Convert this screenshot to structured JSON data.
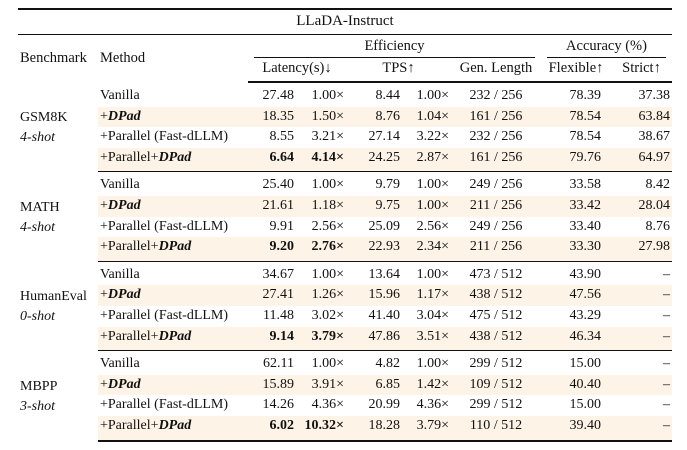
{
  "title": "LLaDA-Instruct",
  "colors": {
    "highlight": "#fdf3e6",
    "rule": "#111111"
  },
  "header": {
    "benchmark": "Benchmark",
    "method": "Method",
    "efficiency": "Efficiency",
    "accuracy": "Accuracy (%)",
    "latency": "Latency(s)↓",
    "tps": "TPS↑",
    "gen_length": "Gen. Length",
    "flexible": "Flexible↑",
    "strict": "Strict↑"
  },
  "groups": [
    {
      "benchmark": "GSM8K",
      "shots": "4-shot",
      "rows": [
        {
          "method_prefix": "Vanilla",
          "method_emph": "",
          "latency": "27.48",
          "latency_speedup": "1.00×",
          "tps": "8.44",
          "tps_speedup": "1.00×",
          "gen_length": "232 / 256",
          "flexible": "78.39",
          "strict": "37.38",
          "highlight": false,
          "bold": false
        },
        {
          "method_prefix": "+",
          "method_emph": "DPad",
          "latency": "18.35",
          "latency_speedup": "1.50×",
          "tps": "8.76",
          "tps_speedup": "1.04×",
          "gen_length": "161 / 256",
          "flexible": "78.54",
          "strict": "63.84",
          "highlight": true,
          "bold": false
        },
        {
          "method_prefix": "+Parallel (Fast-dLLM)",
          "method_emph": "",
          "latency": "8.55",
          "latency_speedup": "3.21×",
          "tps": "27.14",
          "tps_speedup": "3.22×",
          "gen_length": "232 / 256",
          "flexible": "78.54",
          "strict": "38.67",
          "highlight": false,
          "bold": false
        },
        {
          "method_prefix": "+Parallel+",
          "method_emph": "DPad",
          "latency": "6.64",
          "latency_speedup": "4.14×",
          "tps": "24.25",
          "tps_speedup": "2.87×",
          "gen_length": "161 / 256",
          "flexible": "79.76",
          "strict": "64.97",
          "highlight": true,
          "bold": true
        }
      ]
    },
    {
      "benchmark": "MATH",
      "shots": "4-shot",
      "rows": [
        {
          "method_prefix": "Vanilla",
          "method_emph": "",
          "latency": "25.40",
          "latency_speedup": "1.00×",
          "tps": "9.79",
          "tps_speedup": "1.00×",
          "gen_length": "249 / 256",
          "flexible": "33.58",
          "strict": "8.42",
          "highlight": false,
          "bold": false
        },
        {
          "method_prefix": "+",
          "method_emph": "DPad",
          "latency": "21.61",
          "latency_speedup": "1.18×",
          "tps": "9.75",
          "tps_speedup": "1.00×",
          "gen_length": "211 / 256",
          "flexible": "33.42",
          "strict": "28.04",
          "highlight": true,
          "bold": false
        },
        {
          "method_prefix": "+Parallel (Fast-dLLM)",
          "method_emph": "",
          "latency": "9.91",
          "latency_speedup": "2.56×",
          "tps": "25.09",
          "tps_speedup": "2.56×",
          "gen_length": "249 / 256",
          "flexible": "33.40",
          "strict": "8.76",
          "highlight": false,
          "bold": false
        },
        {
          "method_prefix": "+Parallel+",
          "method_emph": "DPad",
          "latency": "9.20",
          "latency_speedup": "2.76×",
          "tps": "22.93",
          "tps_speedup": "2.34×",
          "gen_length": "211 / 256",
          "flexible": "33.30",
          "strict": "27.98",
          "highlight": true,
          "bold": true
        }
      ]
    },
    {
      "benchmark": "HumanEval",
      "shots": "0-shot",
      "rows": [
        {
          "method_prefix": "Vanilla",
          "method_emph": "",
          "latency": "34.67",
          "latency_speedup": "1.00×",
          "tps": "13.64",
          "tps_speedup": "1.00×",
          "gen_length": "473 / 512",
          "flexible": "43.90",
          "strict": "–",
          "highlight": false,
          "bold": false
        },
        {
          "method_prefix": "+",
          "method_emph": "DPad",
          "latency": "27.41",
          "latency_speedup": "1.26×",
          "tps": "15.96",
          "tps_speedup": "1.17×",
          "gen_length": "438 / 512",
          "flexible": "47.56",
          "strict": "–",
          "highlight": true,
          "bold": false
        },
        {
          "method_prefix": "+Parallel (Fast-dLLM)",
          "method_emph": "",
          "latency": "11.48",
          "latency_speedup": "3.02×",
          "tps": "41.40",
          "tps_speedup": "3.04×",
          "gen_length": "475 / 512",
          "flexible": "43.29",
          "strict": "–",
          "highlight": false,
          "bold": false
        },
        {
          "method_prefix": "+Parallel+",
          "method_emph": "DPad",
          "latency": "9.14",
          "latency_speedup": "3.79×",
          "tps": "47.86",
          "tps_speedup": "3.51×",
          "gen_length": "438 / 512",
          "flexible": "46.34",
          "strict": "–",
          "highlight": true,
          "bold": true
        }
      ]
    },
    {
      "benchmark": "MBPP",
      "shots": "3-shot",
      "rows": [
        {
          "method_prefix": "Vanilla",
          "method_emph": "",
          "latency": "62.11",
          "latency_speedup": "1.00×",
          "tps": "4.82",
          "tps_speedup": "1.00×",
          "gen_length": "299 / 512",
          "flexible": "15.00",
          "strict": "–",
          "highlight": false,
          "bold": false
        },
        {
          "method_prefix": "+",
          "method_emph": "DPad",
          "latency": "15.89",
          "latency_speedup": "3.91×",
          "tps": "6.85",
          "tps_speedup": "1.42×",
          "gen_length": "109 / 512",
          "flexible": "40.40",
          "strict": "–",
          "highlight": true,
          "bold": false
        },
        {
          "method_prefix": "+Parallel (Fast-dLLM)",
          "method_emph": "",
          "latency": "14.26",
          "latency_speedup": "4.36×",
          "tps": "20.99",
          "tps_speedup": "4.36×",
          "gen_length": "299 / 512",
          "flexible": "15.00",
          "strict": "–",
          "highlight": false,
          "bold": false
        },
        {
          "method_prefix": "+Parallel+",
          "method_emph": "DPad",
          "latency": "6.02",
          "latency_speedup": "10.32×",
          "tps": "18.28",
          "tps_speedup": "3.79×",
          "gen_length": "110 / 512",
          "flexible": "39.40",
          "strict": "–",
          "highlight": true,
          "bold": true
        }
      ]
    }
  ]
}
